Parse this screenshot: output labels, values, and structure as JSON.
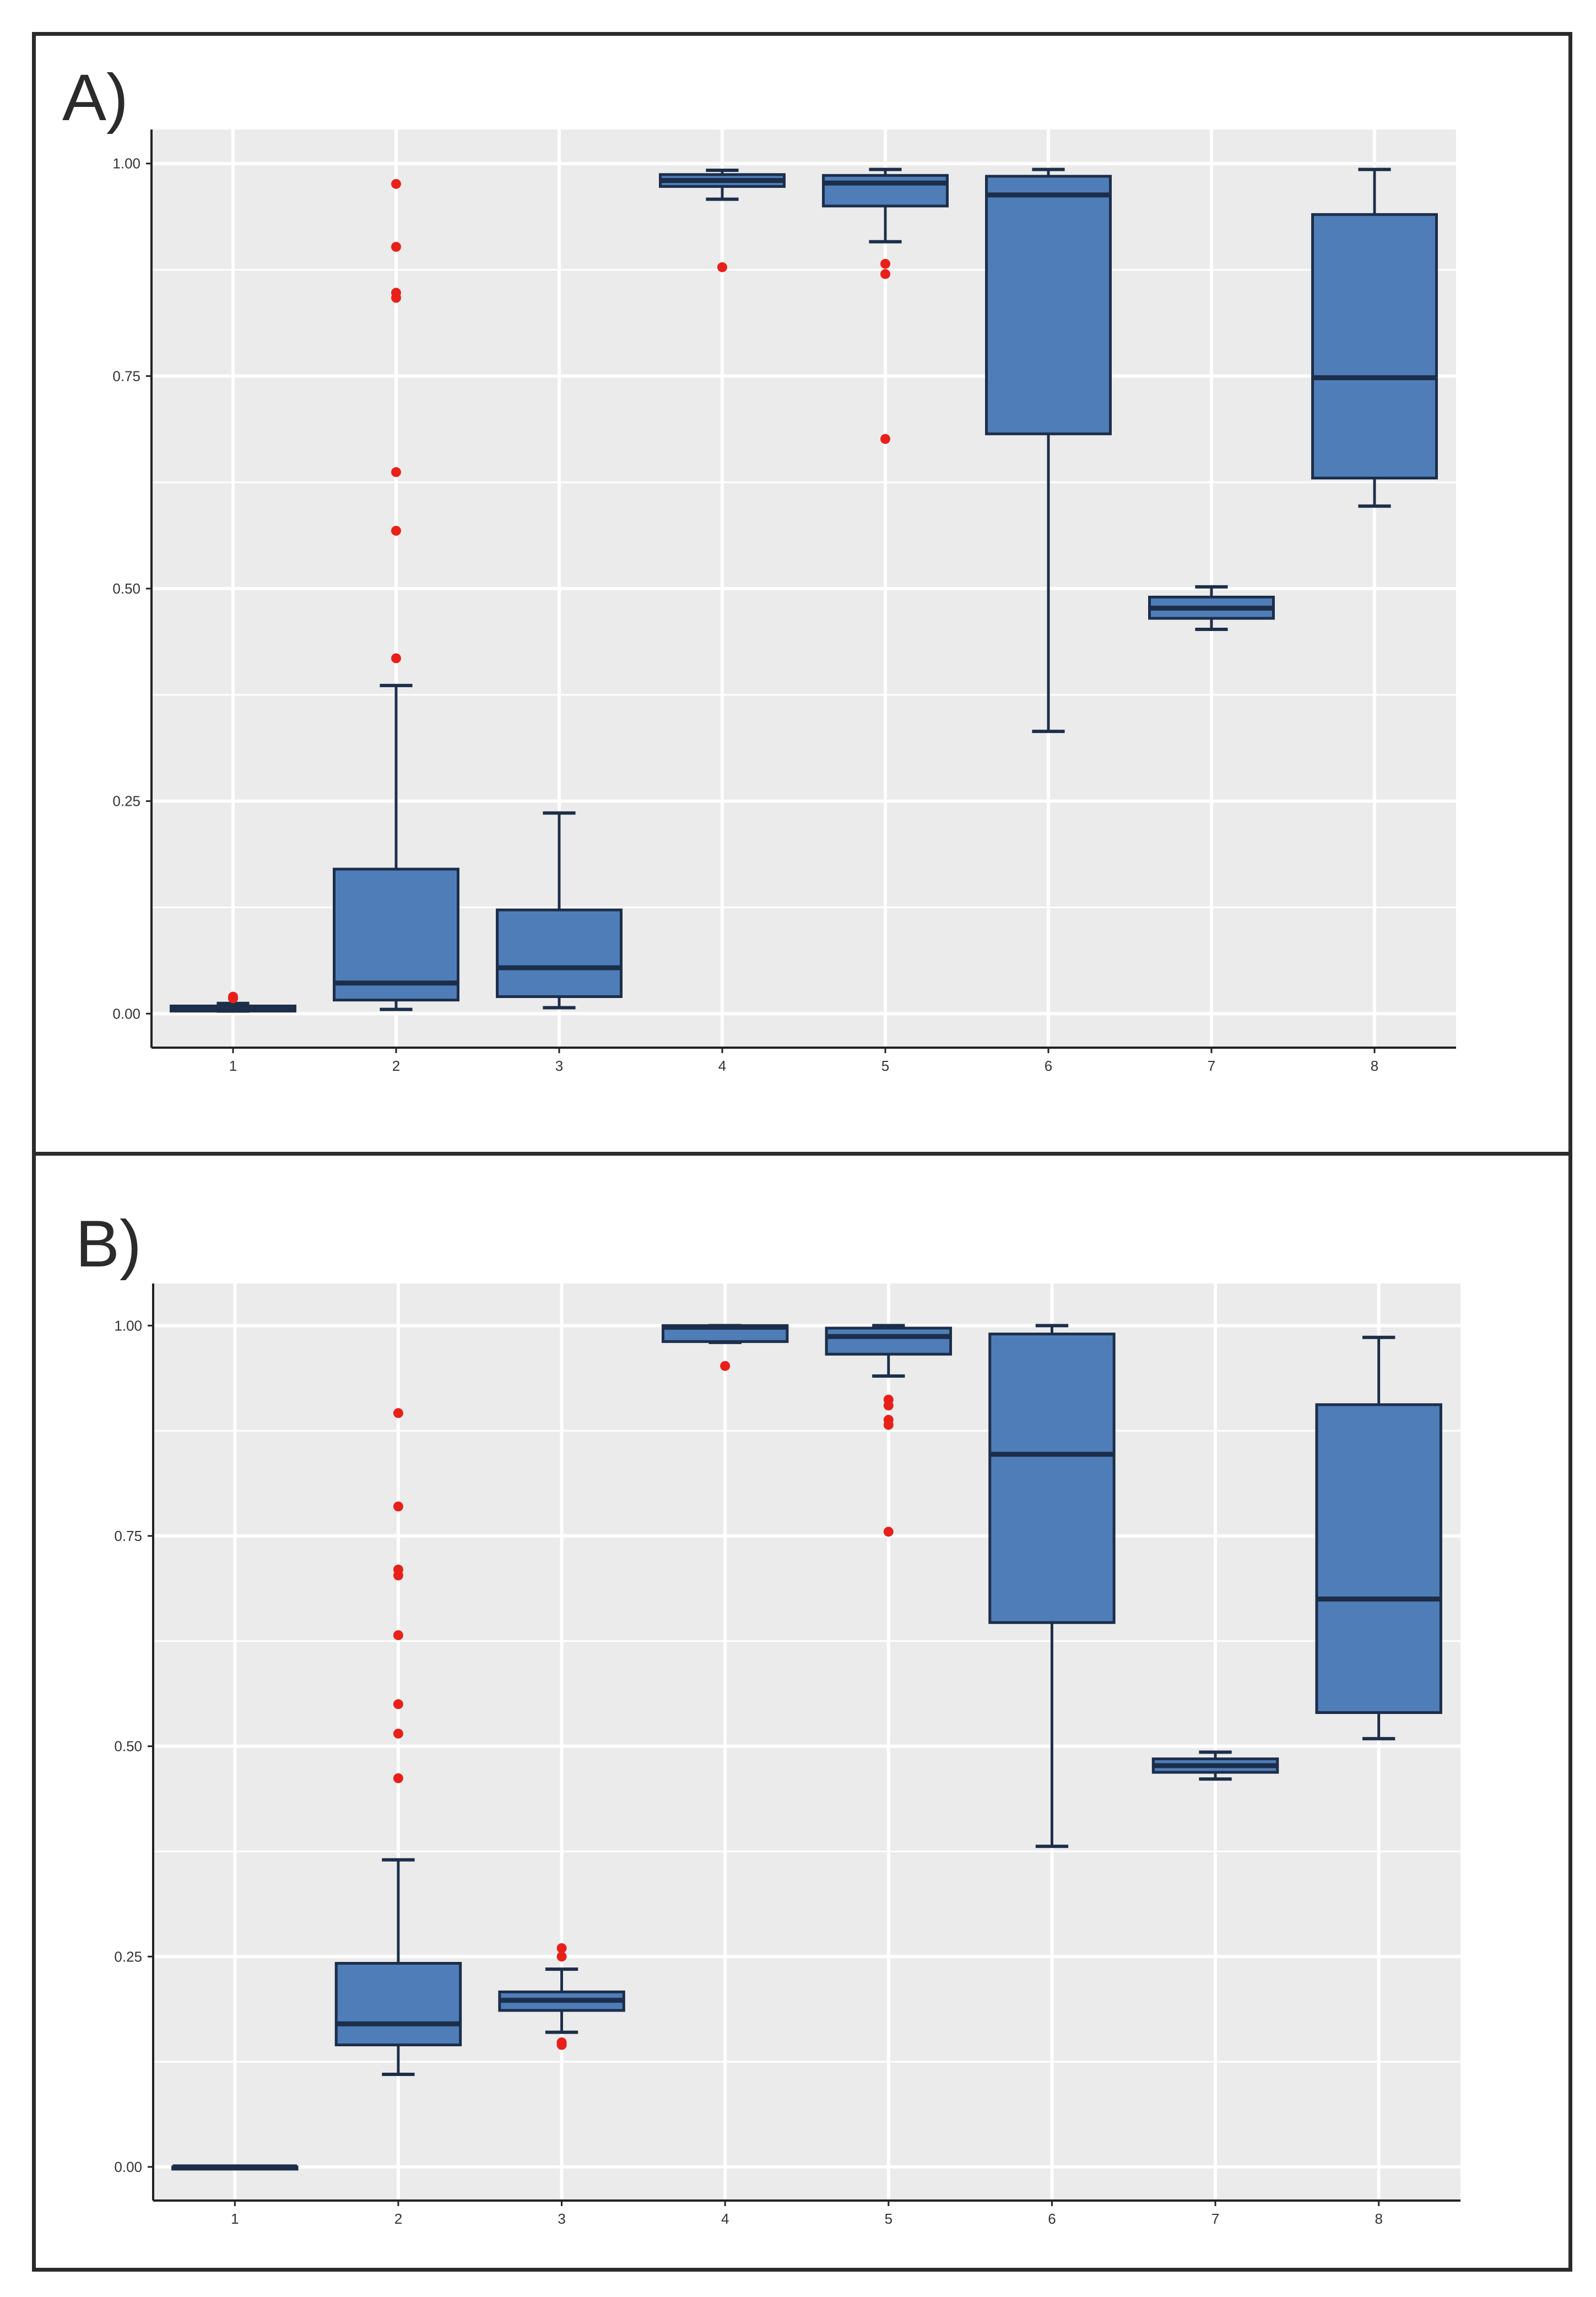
{
  "colors": {
    "box_fill": "#4f7db8",
    "box_stroke": "#1c2e4a",
    "outlier": "#e8201a",
    "panel_bg": "#ebebeb",
    "grid": "#ffffff",
    "axis": "#222222"
  },
  "chart_data": [
    {
      "panel": "A)",
      "type": "boxplot",
      "title": "",
      "xlabel": "",
      "ylabel": "",
      "ylim": [
        -0.04,
        1.04
      ],
      "categories": [
        "1",
        "2",
        "3",
        "4",
        "5",
        "6",
        "7",
        "8"
      ],
      "y_ticks": [
        0.0,
        0.25,
        0.5,
        0.75,
        1.0
      ],
      "y_tick_labels": [
        "0.00",
        "0.25",
        "0.50",
        "0.75",
        "1.00"
      ],
      "boxes": [
        {
          "cat": "1",
          "whisker_low": 0.003,
          "q1": 0.003,
          "median": 0.006,
          "q3": 0.009,
          "whisker_high": 0.012,
          "outliers": [
            0.018,
            0.02
          ]
        },
        {
          "cat": "2",
          "whisker_low": 0.005,
          "q1": 0.016,
          "median": 0.036,
          "q3": 0.17,
          "whisker_high": 0.386,
          "outliers": [
            0.418,
            0.568,
            0.637,
            0.842,
            0.848,
            0.902,
            0.976
          ]
        },
        {
          "cat": "3",
          "whisker_low": 0.007,
          "q1": 0.02,
          "median": 0.054,
          "q3": 0.122,
          "whisker_high": 0.236,
          "outliers": []
        },
        {
          "cat": "4",
          "whisker_low": 0.958,
          "q1": 0.973,
          "median": 0.98,
          "q3": 0.987,
          "whisker_high": 0.992,
          "outliers": [
            0.878
          ]
        },
        {
          "cat": "5",
          "whisker_low": 0.908,
          "q1": 0.95,
          "median": 0.977,
          "q3": 0.986,
          "whisker_high": 0.993,
          "outliers": [
            0.676,
            0.87,
            0.882
          ]
        },
        {
          "cat": "6",
          "whisker_low": 0.332,
          "q1": 0.682,
          "median": 0.963,
          "q3": 0.985,
          "whisker_high": 0.993,
          "outliers": []
        },
        {
          "cat": "7",
          "whisker_low": 0.452,
          "q1": 0.465,
          "median": 0.477,
          "q3": 0.49,
          "whisker_high": 0.502,
          "outliers": []
        },
        {
          "cat": "8",
          "whisker_low": 0.597,
          "q1": 0.63,
          "median": 0.748,
          "q3": 0.94,
          "whisker_high": 0.993,
          "outliers": []
        }
      ]
    },
    {
      "panel": "B)",
      "type": "boxplot",
      "title": "",
      "xlabel": "",
      "ylabel": "",
      "ylim": [
        -0.04,
        1.05
      ],
      "categories": [
        "1",
        "2",
        "3",
        "4",
        "5",
        "6",
        "7",
        "8"
      ],
      "y_ticks": [
        0.0,
        0.25,
        0.5,
        0.75,
        1.0
      ],
      "y_tick_labels": [
        "0.00",
        "0.25",
        "0.50",
        "0.75",
        "1.00"
      ],
      "boxes": [
        {
          "cat": "1",
          "whisker_low": 0.0,
          "q1": 0.0,
          "median": 0.0,
          "q3": 0.0,
          "whisker_high": 0.0,
          "outliers": []
        },
        {
          "cat": "2",
          "whisker_low": 0.11,
          "q1": 0.145,
          "median": 0.17,
          "q3": 0.242,
          "whisker_high": 0.365,
          "outliers": [
            0.462,
            0.515,
            0.55,
            0.632,
            0.703,
            0.71,
            0.785,
            0.896
          ]
        },
        {
          "cat": "3",
          "whisker_low": 0.16,
          "q1": 0.186,
          "median": 0.198,
          "q3": 0.208,
          "whisker_high": 0.235,
          "outliers": [
            0.145,
            0.148,
            0.25,
            0.26
          ]
        },
        {
          "cat": "4",
          "whisker_low": 0.98,
          "q1": 0.981,
          "median": 0.998,
          "q3": 1.0,
          "whisker_high": 1.0,
          "outliers": [
            0.952
          ]
        },
        {
          "cat": "5",
          "whisker_low": 0.94,
          "q1": 0.966,
          "median": 0.987,
          "q3": 0.997,
          "whisker_high": 1.0,
          "outliers": [
            0.755,
            0.882,
            0.888,
            0.905,
            0.912
          ]
        },
        {
          "cat": "6",
          "whisker_low": 0.381,
          "q1": 0.647,
          "median": 0.847,
          "q3": 0.99,
          "whisker_high": 1.0,
          "outliers": []
        },
        {
          "cat": "7",
          "whisker_low": 0.461,
          "q1": 0.469,
          "median": 0.477,
          "q3": 0.485,
          "whisker_high": 0.493,
          "outliers": []
        },
        {
          "cat": "8",
          "whisker_low": 0.509,
          "q1": 0.54,
          "median": 0.675,
          "q3": 0.906,
          "whisker_high": 0.986,
          "outliers": []
        }
      ]
    }
  ]
}
